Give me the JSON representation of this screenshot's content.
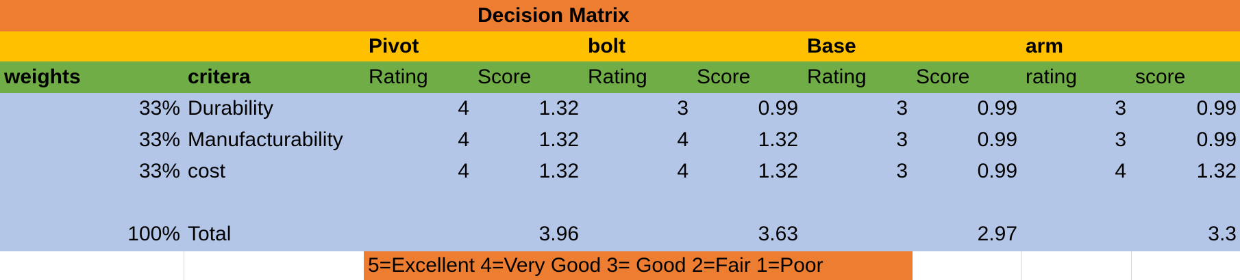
{
  "title": "Decision Matrix",
  "parts": [
    "Pivot",
    "bolt",
    "Base",
    "arm"
  ],
  "header": {
    "weights": "weights",
    "criteria": "critera",
    "sub": [
      "Rating",
      "Score",
      "Rating",
      "Score",
      "Rating",
      "Score",
      "rating",
      "score"
    ]
  },
  "rows": [
    {
      "weight": "33%",
      "criterion": "Durability",
      "values": [
        "4",
        "1.32",
        "3",
        "0.99",
        "3",
        "0.99",
        "3",
        "0.99"
      ]
    },
    {
      "weight": "33%",
      "criterion": "Manufacturability",
      "values": [
        "4",
        "1.32",
        "4",
        "1.32",
        "3",
        "0.99",
        "3",
        "0.99"
      ]
    },
    {
      "weight": "33%",
      "criterion": "cost",
      "values": [
        "4",
        "1.32",
        "4",
        "1.32",
        "3",
        "0.99",
        "4",
        "1.32"
      ]
    }
  ],
  "total": {
    "weight": "100%",
    "label": "Total",
    "scores": [
      "3.96",
      "3.63",
      "2.97",
      "3.3"
    ]
  },
  "legend": "5=Excellent  4=Very Good  3= Good  2=Fair  1=Poor",
  "colors": {
    "title_bg": "#ED7D31",
    "parts_bg": "#FFC000",
    "header_bg": "#70AD47",
    "body_bg": "#B4C6E7",
    "legend_bg": "#ED7D31"
  }
}
